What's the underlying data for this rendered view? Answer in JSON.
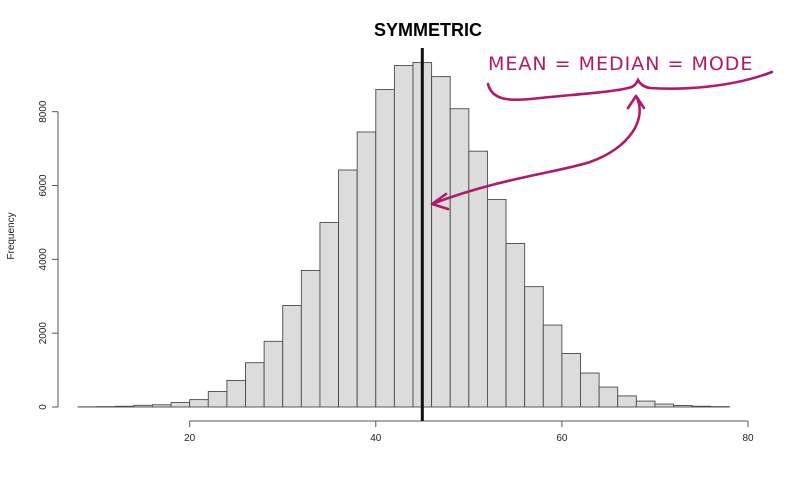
{
  "chart_data": {
    "type": "bar",
    "title": "SYMMETRIC",
    "xlabel": "",
    "ylabel": "Frequency",
    "bin_width": 2,
    "x_ticks": [
      20,
      40,
      60,
      80
    ],
    "y_ticks": [
      0,
      2000,
      4000,
      6000,
      8000
    ],
    "xlim": [
      8,
      80
    ],
    "ylim": [
      0,
      9400
    ],
    "bins": [
      {
        "x0": 8,
        "x1": 10,
        "count": 5
      },
      {
        "x0": 10,
        "x1": 12,
        "count": 10
      },
      {
        "x0": 12,
        "x1": 14,
        "count": 20
      },
      {
        "x0": 14,
        "x1": 16,
        "count": 45
      },
      {
        "x0": 16,
        "x1": 18,
        "count": 60
      },
      {
        "x0": 18,
        "x1": 20,
        "count": 120
      },
      {
        "x0": 20,
        "x1": 22,
        "count": 200
      },
      {
        "x0": 22,
        "x1": 24,
        "count": 420
      },
      {
        "x0": 24,
        "x1": 26,
        "count": 720
      },
      {
        "x0": 26,
        "x1": 28,
        "count": 1200
      },
      {
        "x0": 28,
        "x1": 30,
        "count": 1780
      },
      {
        "x0": 30,
        "x1": 32,
        "count": 2750
      },
      {
        "x0": 32,
        "x1": 34,
        "count": 3700
      },
      {
        "x0": 34,
        "x1": 36,
        "count": 5000
      },
      {
        "x0": 36,
        "x1": 38,
        "count": 6420
      },
      {
        "x0": 38,
        "x1": 40,
        "count": 7450
      },
      {
        "x0": 40,
        "x1": 42,
        "count": 8600
      },
      {
        "x0": 42,
        "x1": 44,
        "count": 9250
      },
      {
        "x0": 44,
        "x1": 46,
        "count": 9330
      },
      {
        "x0": 46,
        "x1": 48,
        "count": 8950
      },
      {
        "x0": 48,
        "x1": 50,
        "count": 8080
      },
      {
        "x0": 50,
        "x1": 52,
        "count": 6930
      },
      {
        "x0": 52,
        "x1": 54,
        "count": 5620
      },
      {
        "x0": 54,
        "x1": 56,
        "count": 4430
      },
      {
        "x0": 56,
        "x1": 58,
        "count": 3260
      },
      {
        "x0": 58,
        "x1": 60,
        "count": 2220
      },
      {
        "x0": 60,
        "x1": 62,
        "count": 1450
      },
      {
        "x0": 62,
        "x1": 64,
        "count": 920
      },
      {
        "x0": 64,
        "x1": 66,
        "count": 540
      },
      {
        "x0": 66,
        "x1": 68,
        "count": 300
      },
      {
        "x0": 68,
        "x1": 70,
        "count": 160
      },
      {
        "x0": 70,
        "x1": 72,
        "count": 80
      },
      {
        "x0": 72,
        "x1": 74,
        "count": 40
      },
      {
        "x0": 74,
        "x1": 76,
        "count": 20
      },
      {
        "x0": 76,
        "x1": 78,
        "count": 10
      }
    ],
    "vertical_line": {
      "x": 45,
      "color": "#111111"
    },
    "annotation": {
      "text": "MEAN = MEDIAN = MODE",
      "color": "#b2186b"
    },
    "bar_fill": "#dcdcdc",
    "bar_stroke": "#4a4a4a",
    "grid": false
  }
}
